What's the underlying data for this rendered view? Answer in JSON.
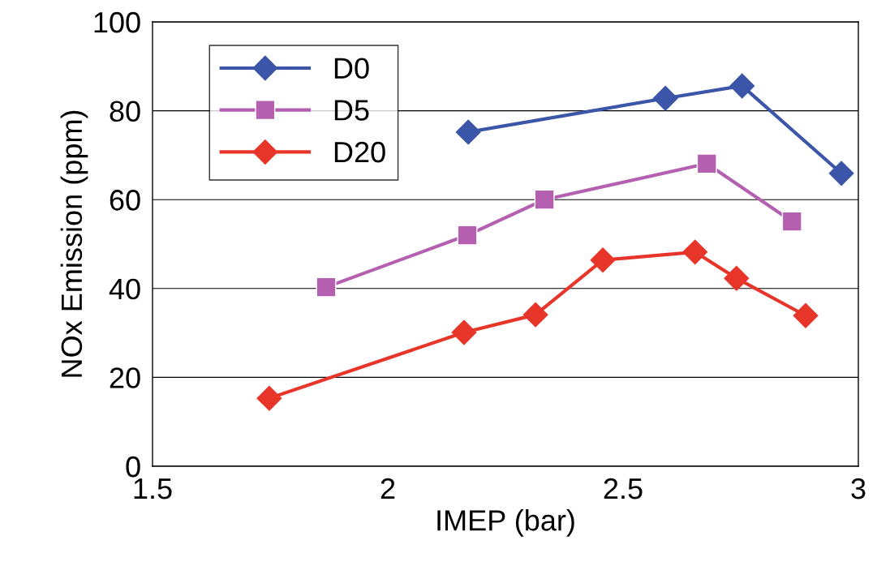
{
  "chart_data": {
    "type": "line",
    "xlabel": "IMEP (bar)",
    "ylabel": "NOx Emission (ppm)",
    "xlim": [
      1.5,
      3
    ],
    "xticks": [
      1.5,
      2,
      2.5,
      3
    ],
    "ylim": [
      0,
      100
    ],
    "yticks": [
      0,
      20,
      40,
      60,
      80,
      100
    ],
    "grid": "y",
    "legend": "top left",
    "line_style": "solid",
    "series": [
      {
        "name": "D0",
        "color": "#3b55a8",
        "marker": "diamond",
        "x": [
          2.171,
          2.59,
          2.753,
          2.964
        ],
        "values": [
          75.2,
          82.8,
          85.6,
          65.9
        ]
      },
      {
        "name": "D5",
        "color": "#b45fb0",
        "marker": "square",
        "x": [
          1.869,
          2.169,
          2.333,
          2.678,
          2.859
        ],
        "values": [
          40.3,
          52.0,
          60.0,
          68.1,
          55.1
        ]
      },
      {
        "name": "D20",
        "color": "#e8352a",
        "marker": "diamond",
        "x": [
          1.748,
          2.162,
          2.314,
          2.457,
          2.653,
          2.741,
          2.888
        ],
        "values": [
          15.3,
          30.1,
          34.1,
          46.4,
          48.2,
          42.3,
          33.9
        ]
      }
    ]
  }
}
